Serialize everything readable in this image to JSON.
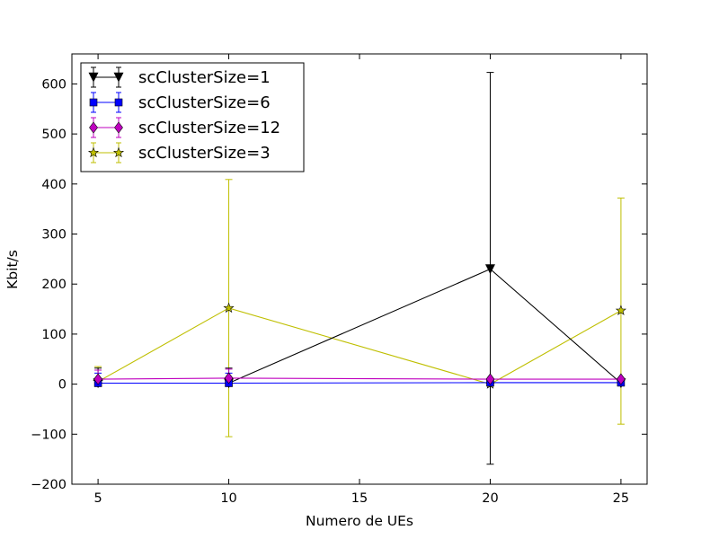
{
  "chart_data": {
    "type": "line",
    "xlabel": "Numero de UEs",
    "ylabel": "Kbit/s",
    "xlim": [
      4,
      26
    ],
    "ylim": [
      -200,
      660
    ],
    "x_ticks": [
      5,
      10,
      15,
      20,
      25
    ],
    "y_ticks": [
      -200,
      -100,
      0,
      100,
      200,
      300,
      400,
      500,
      600
    ],
    "y_tick_labels": [
      "−200",
      "−100",
      "0",
      "100",
      "200",
      "300",
      "400",
      "500",
      "600"
    ],
    "grid": false,
    "legend_position": "top-left",
    "x": [
      5,
      10,
      20,
      25
    ],
    "series": [
      {
        "name": "scClusterSize=1",
        "color": "#000000",
        "marker": "triangle-down",
        "values": [
          2,
          2,
          230,
          2
        ],
        "err_low": [
          0,
          0,
          390,
          0
        ],
        "err_high": [
          30,
          30,
          393,
          0
        ]
      },
      {
        "name": "scClusterSize=6",
        "color": "#0000ff",
        "marker": "square",
        "values": [
          2,
          2,
          3,
          3
        ],
        "err_low": [
          0,
          0,
          0,
          0
        ],
        "err_high": [
          20,
          20,
          0,
          0
        ]
      },
      {
        "name": "scClusterSize=12",
        "color": "#bf00bf",
        "marker": "diamond",
        "values": [
          10,
          12,
          10,
          10
        ],
        "err_low": [
          0,
          0,
          0,
          0
        ],
        "err_high": [
          18,
          18,
          0,
          0
        ]
      },
      {
        "name": "scClusterSize=3",
        "color": "#bfbf00",
        "marker": "star",
        "values": [
          5,
          152,
          0,
          147
        ],
        "err_low": [
          0,
          257,
          0,
          227
        ],
        "err_high": [
          30,
          257,
          0,
          225
        ]
      }
    ]
  }
}
